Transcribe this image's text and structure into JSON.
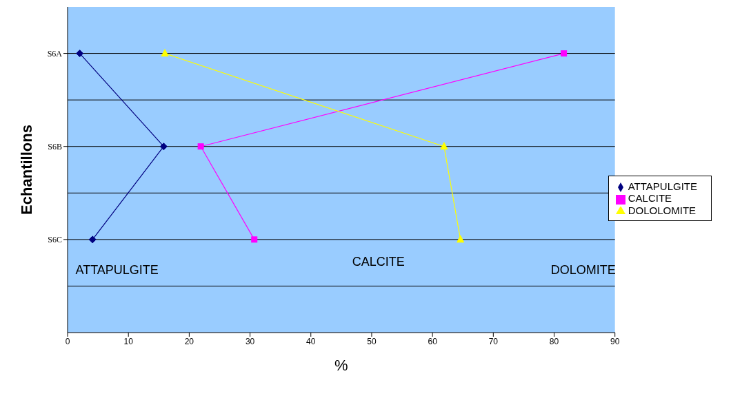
{
  "chart_data": {
    "type": "line",
    "orientation": "horizontal",
    "xlabel": "%",
    "ylabel": "Echantillons",
    "categories": [
      "S6A",
      "S6B",
      "S6C"
    ],
    "series": [
      {
        "name": "ATTAPULGITE",
        "color": "#000080",
        "marker": "diamond",
        "values": [
          2,
          15.8,
          4.1
        ]
      },
      {
        "name": "CALCITE",
        "color": "#ff00ff",
        "marker": "square",
        "values": [
          81.6,
          21.9,
          30.7
        ]
      },
      {
        "name": "DOLOLOMITE",
        "color": "#ffff00",
        "marker": "triangle",
        "values": [
          16,
          61.9,
          64.6
        ]
      }
    ],
    "xlim": [
      0,
      90
    ],
    "xticks": [
      0,
      10,
      20,
      30,
      40,
      50,
      60,
      70,
      80,
      90
    ],
    "grid": "y",
    "legend": "right",
    "annotations": [
      "ATTAPULGITE",
      "CALCITE",
      "DOLOMITE"
    ]
  }
}
